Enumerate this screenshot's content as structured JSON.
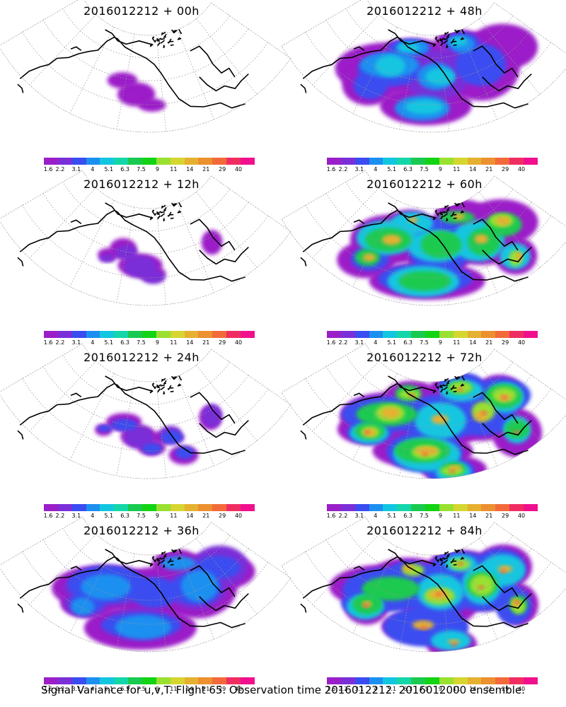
{
  "panels": [
    {
      "title": "2016012212 + 00h",
      "intensity": 0
    },
    {
      "title": "2016012212 + 48h",
      "intensity": 4
    },
    {
      "title": "2016012212 + 12h",
      "intensity": 1
    },
    {
      "title": "2016012212 + 60h",
      "intensity": 5
    },
    {
      "title": "2016012212 + 24h",
      "intensity": 2
    },
    {
      "title": "2016012212 + 72h",
      "intensity": 6
    },
    {
      "title": "2016012212 + 36h",
      "intensity": 3
    },
    {
      "title": "2016012212 + 84h",
      "intensity": 7
    }
  ],
  "colorbar": {
    "colors": [
      "#9b1fc8",
      "#7a2fd8",
      "#3a4df0",
      "#1c90f0",
      "#13c6e0",
      "#14d6a8",
      "#1aca50",
      "#12d414",
      "#99e030",
      "#d6d630",
      "#e6b030",
      "#ec9030",
      "#f26a3a",
      "#f02d62",
      "#f0108e"
    ],
    "labels": [
      "1.6",
      "2.2",
      "3.1",
      "4",
      "5.1",
      "6.3",
      "7.5",
      "9",
      "11",
      "14",
      "21",
      "29",
      "40"
    ]
  },
  "caption": "Signal Variance for u,v,T. Flight 65. Observation time 2016012212. 2016012000 ensemble."
}
